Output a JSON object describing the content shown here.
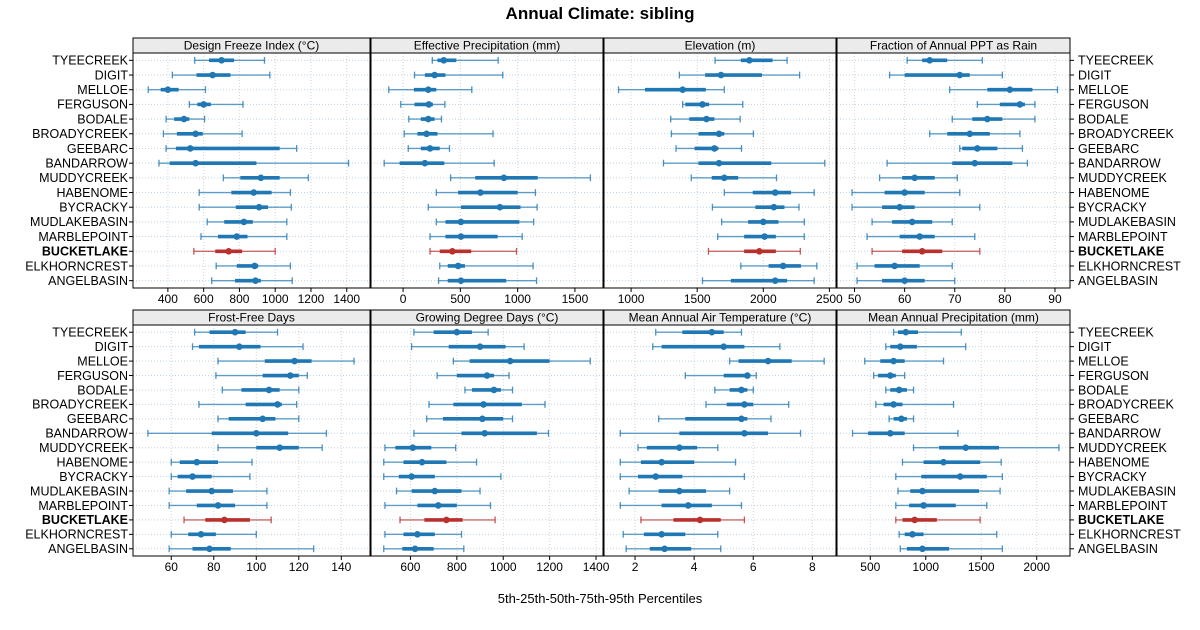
{
  "title": "Annual Climate: sibling",
  "caption": "5th-25th-50th-75th-95th Percentiles",
  "colors": {
    "series": "#1f77b4",
    "highlight": "#b9302c",
    "strip_bg": "#ebebeb",
    "gridline": "#d4d4d4",
    "row_guide": "#bed3e3",
    "panel_border": "#000000"
  },
  "chart_data": {
    "type": "scatter",
    "variant": "trellis-percentile-interval-dotplot",
    "percentiles": [
      5,
      25,
      50,
      75,
      95
    ],
    "xlabel": "5th-25th-50th-75th-95th Percentiles",
    "grid": "dotted",
    "highlight_site": "BUCKETLAKE",
    "sites": [
      "TYEECREEK",
      "DIGIT",
      "MELLOE",
      "FERGUSON",
      "BODALE",
      "BROADYCREEK",
      "GEEBARC",
      "BANDARROW",
      "MUDDYCREEK",
      "HABENOME",
      "BYCRACKY",
      "MUDLAKEBASIN",
      "MARBLEPOINT",
      "BUCKETLAKE",
      "ELKHORNCREST",
      "ANGELBASIN"
    ],
    "panels": [
      {
        "title": "Design Freeze Index (°C)",
        "ticks": [
          400,
          600,
          800,
          1000,
          1200,
          1400
        ],
        "xlim": [
          205,
          1530
        ],
        "values": [
          [
            550,
            630,
            700,
            770,
            940
          ],
          [
            425,
            560,
            650,
            750,
            970
          ],
          [
            290,
            360,
            400,
            460,
            610
          ],
          [
            520,
            565,
            600,
            640,
            820
          ],
          [
            390,
            435,
            490,
            520,
            605
          ],
          [
            375,
            450,
            555,
            595,
            815
          ],
          [
            390,
            445,
            525,
            1025,
            1120
          ],
          [
            350,
            410,
            555,
            895,
            1410
          ],
          [
            710,
            805,
            920,
            1025,
            1185
          ],
          [
            575,
            755,
            880,
            980,
            1085
          ],
          [
            575,
            780,
            910,
            960,
            1090
          ],
          [
            620,
            715,
            825,
            875,
            1065
          ],
          [
            585,
            680,
            785,
            845,
            1065
          ],
          [
            545,
            665,
            740,
            815,
            1000
          ],
          [
            670,
            785,
            885,
            905,
            1085
          ],
          [
            645,
            775,
            890,
            920,
            1095
          ]
        ]
      },
      {
        "title": "Effective Precipitation (mm)",
        "ticks": [
          0,
          500,
          1000,
          1500
        ],
        "xlim": [
          -280,
          1745
        ],
        "values": [
          [
            255,
            300,
            355,
            465,
            830
          ],
          [
            100,
            190,
            275,
            370,
            870
          ],
          [
            -125,
            95,
            220,
            290,
            600
          ],
          [
            -20,
            100,
            225,
            260,
            365
          ],
          [
            50,
            155,
            220,
            275,
            335
          ],
          [
            10,
            125,
            205,
            300,
            785
          ],
          [
            45,
            155,
            235,
            320,
            405
          ],
          [
            -165,
            -30,
            190,
            360,
            795
          ],
          [
            415,
            630,
            880,
            1175,
            1635
          ],
          [
            290,
            480,
            675,
            1000,
            1155
          ],
          [
            220,
            505,
            845,
            1025,
            1170
          ],
          [
            290,
            370,
            505,
            1015,
            1140
          ],
          [
            235,
            370,
            505,
            825,
            1040
          ],
          [
            235,
            320,
            430,
            595,
            990
          ],
          [
            320,
            390,
            480,
            540,
            1135
          ],
          [
            310,
            390,
            505,
            900,
            1165
          ]
        ]
      },
      {
        "title": "Elevation (m)",
        "ticks": [
          1000,
          1500,
          2000,
          2500
        ],
        "xlim": [
          795,
          2550
        ],
        "values": [
          [
            1635,
            1830,
            1895,
            2070,
            2180
          ],
          [
            1365,
            1560,
            1680,
            1990,
            2275
          ],
          [
            905,
            1105,
            1390,
            1565,
            1705
          ],
          [
            1390,
            1410,
            1540,
            1590,
            1845
          ],
          [
            1300,
            1440,
            1570,
            1630,
            1825
          ],
          [
            1305,
            1510,
            1665,
            1705,
            1925
          ],
          [
            1340,
            1480,
            1630,
            1660,
            1835
          ],
          [
            1245,
            1510,
            1665,
            2060,
            2465
          ],
          [
            1455,
            1610,
            1705,
            1810,
            2100
          ],
          [
            1705,
            1920,
            2090,
            2210,
            2385
          ],
          [
            1615,
            1940,
            2080,
            2160,
            2270
          ],
          [
            1685,
            1885,
            2000,
            2115,
            2310
          ],
          [
            1655,
            1855,
            2010,
            2095,
            2310
          ],
          [
            1585,
            1855,
            1970,
            2095,
            2280
          ],
          [
            1830,
            2040,
            2150,
            2285,
            2405
          ],
          [
            1540,
            1755,
            2090,
            2180,
            2385
          ]
        ]
      },
      {
        "title": "Fraction of Annual PPT as Rain",
        "ticks": [
          50,
          60,
          70,
          80,
          90
        ],
        "xlim": [
          46.5,
          93
        ],
        "values": [
          [
            60.5,
            63.5,
            65,
            68.5,
            75.5
          ],
          [
            57,
            60,
            71,
            73,
            79.5
          ],
          [
            69,
            76.5,
            81,
            85.5,
            90.5
          ],
          [
            74.5,
            79,
            83,
            84,
            86
          ],
          [
            69.5,
            73.5,
            76.5,
            79.5,
            86
          ],
          [
            65,
            68.5,
            73,
            77,
            83
          ],
          [
            71,
            71.5,
            74.5,
            78.5,
            83.5
          ],
          [
            56.5,
            69.5,
            74,
            81.5,
            84.5
          ],
          [
            55,
            59.5,
            62,
            66,
            70.5
          ],
          [
            49.5,
            56,
            60,
            64,
            71
          ],
          [
            49.5,
            55.5,
            59,
            62,
            75
          ],
          [
            53.5,
            57.5,
            61.5,
            65.5,
            69.5
          ],
          [
            52.5,
            59,
            63,
            66,
            74
          ],
          [
            53.5,
            59.5,
            63.5,
            67.5,
            75
          ],
          [
            50.5,
            54,
            58,
            63,
            69.5
          ],
          [
            50.5,
            55.5,
            60,
            64,
            70
          ]
        ]
      },
      {
        "title": "Frost-Free Days",
        "ticks": [
          60,
          80,
          100,
          120,
          140
        ],
        "xlim": [
          42,
          153.5
        ],
        "values": [
          [
            71,
            78,
            90,
            95,
            110
          ],
          [
            70,
            73,
            92,
            102,
            122
          ],
          [
            82,
            104,
            118,
            126,
            146
          ],
          [
            81,
            103,
            116,
            120,
            124
          ],
          [
            84,
            93,
            106,
            111,
            120
          ],
          [
            73,
            95,
            110,
            112,
            119
          ],
          [
            82,
            87,
            103,
            109,
            120
          ],
          [
            49,
            79,
            100,
            115,
            133
          ],
          [
            82,
            100,
            111,
            120,
            131
          ],
          [
            60,
            64,
            72,
            82,
            98
          ],
          [
            60,
            63,
            70,
            79,
            97
          ],
          [
            59,
            67,
            79,
            89,
            105
          ],
          [
            59,
            72,
            82,
            90,
            105
          ],
          [
            66,
            76,
            85,
            97,
            107
          ],
          [
            60,
            68,
            74,
            81,
            100
          ],
          [
            59,
            70,
            78,
            88,
            127
          ]
        ]
      },
      {
        "title": "Growing Degree Days (°C)",
        "ticks": [
          600,
          800,
          1000,
          1200,
          1400
        ],
        "xlim": [
          430,
          1430
        ],
        "values": [
          [
            615,
            700,
            800,
            865,
            935
          ],
          [
            605,
            765,
            900,
            1010,
            1090
          ],
          [
            785,
            855,
            1030,
            1200,
            1375
          ],
          [
            715,
            800,
            930,
            960,
            1025
          ],
          [
            835,
            865,
            960,
            990,
            1040
          ],
          [
            680,
            785,
            915,
            1080,
            1180
          ],
          [
            670,
            740,
            910,
            1000,
            1040
          ],
          [
            615,
            820,
            920,
            1145,
            1195
          ],
          [
            490,
            535,
            610,
            690,
            795
          ],
          [
            485,
            570,
            650,
            755,
            885
          ],
          [
            485,
            550,
            605,
            705,
            990
          ],
          [
            540,
            605,
            705,
            820,
            900
          ],
          [
            490,
            630,
            720,
            800,
            945
          ],
          [
            555,
            660,
            755,
            825,
            965
          ],
          [
            490,
            570,
            630,
            705,
            820
          ],
          [
            485,
            565,
            620,
            700,
            830
          ]
        ]
      },
      {
        "title": "Mean Annual Air Temperature (°C)",
        "ticks": [
          2,
          4,
          6,
          8
        ],
        "xlim": [
          0.95,
          8.8
        ],
        "values": [
          [
            2.7,
            3.6,
            4.6,
            5.0,
            5.6
          ],
          [
            2.6,
            2.9,
            5.0,
            5.7,
            6.9
          ],
          [
            5.2,
            5.5,
            6.5,
            7.3,
            8.4
          ],
          [
            3.7,
            5.0,
            5.8,
            5.9,
            6.1
          ],
          [
            4.7,
            5.2,
            5.6,
            5.8,
            6.0
          ],
          [
            4.4,
            5.1,
            5.7,
            6.0,
            7.2
          ],
          [
            2.8,
            3.7,
            5.6,
            5.8,
            6.6
          ],
          [
            1.5,
            3.5,
            5.7,
            6.5,
            7.6
          ],
          [
            2.1,
            2.4,
            3.5,
            4.1,
            4.8
          ],
          [
            1.5,
            2.2,
            2.9,
            4.0,
            5.4
          ],
          [
            1.5,
            2.1,
            2.7,
            3.6,
            5.7
          ],
          [
            1.8,
            2.8,
            3.5,
            4.4,
            5.2
          ],
          [
            1.5,
            2.9,
            3.8,
            4.6,
            5.6
          ],
          [
            2.2,
            3.3,
            4.2,
            4.9,
            5.7
          ],
          [
            1.6,
            2.3,
            2.9,
            3.7,
            4.8
          ],
          [
            1.7,
            2.5,
            3.0,
            3.9,
            4.9
          ]
        ]
      },
      {
        "title": "Mean Annual Precipitation (mm)",
        "ticks": [
          500,
          1000,
          1500,
          2000
        ],
        "xlim": [
          200,
          2300
        ],
        "values": [
          [
            710,
            750,
            820,
            930,
            1320
          ],
          [
            640,
            680,
            770,
            920,
            1360
          ],
          [
            450,
            590,
            710,
            810,
            1160
          ],
          [
            530,
            570,
            680,
            730,
            810
          ],
          [
            640,
            680,
            760,
            830,
            890
          ],
          [
            550,
            620,
            710,
            790,
            1250
          ],
          [
            670,
            710,
            780,
            830,
            890
          ],
          [
            340,
            480,
            680,
            810,
            1290
          ],
          [
            890,
            1120,
            1360,
            1660,
            2200
          ],
          [
            790,
            980,
            1160,
            1490,
            1680
          ],
          [
            730,
            960,
            1310,
            1550,
            1690
          ],
          [
            750,
            860,
            970,
            1480,
            1670
          ],
          [
            730,
            850,
            980,
            1270,
            1550
          ],
          [
            730,
            790,
            900,
            1100,
            1490
          ],
          [
            760,
            810,
            880,
            980,
            1640
          ],
          [
            770,
            830,
            970,
            1210,
            1690
          ]
        ]
      }
    ]
  }
}
